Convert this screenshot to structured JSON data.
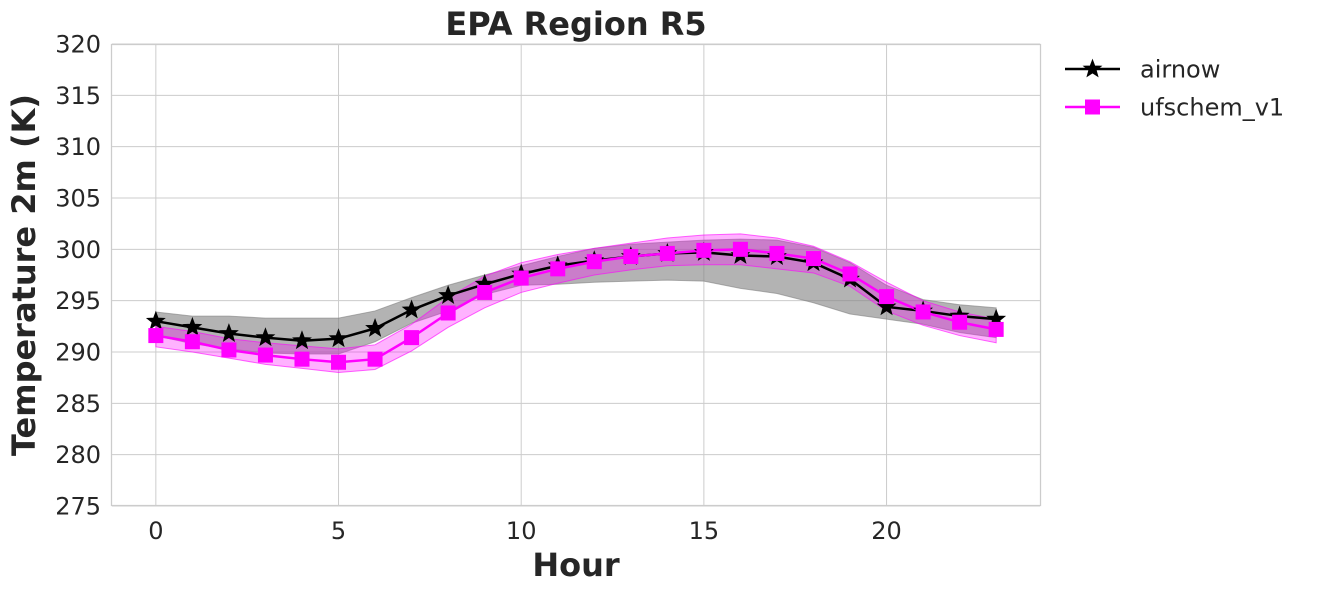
{
  "chart_data": {
    "type": "line",
    "title": "EPA Region R5",
    "xlabel": "Hour",
    "ylabel": "Temperature 2m (K)",
    "xlim": [
      -1.2,
      24.2
    ],
    "ylim": [
      275,
      320
    ],
    "xticks": [
      0,
      5,
      10,
      15,
      20
    ],
    "yticks": [
      275,
      280,
      285,
      290,
      295,
      300,
      305,
      310,
      315,
      320
    ],
    "grid": true,
    "legend_position": "outside-top-right",
    "x": [
      0,
      1,
      2,
      3,
      4,
      5,
      6,
      7,
      8,
      9,
      10,
      11,
      12,
      13,
      14,
      15,
      16,
      17,
      18,
      19,
      20,
      21,
      22,
      23
    ],
    "series": [
      {
        "name": "airnow",
        "color": "#000000",
        "marker": "star",
        "band_color": "#808080",
        "values": [
          293.0,
          292.4,
          291.8,
          291.4,
          291.1,
          291.3,
          292.3,
          294.1,
          295.5,
          296.6,
          297.6,
          298.4,
          298.9,
          299.3,
          299.6,
          299.7,
          299.4,
          299.3,
          298.7,
          297.1,
          294.4,
          294.0,
          293.5,
          293.2
        ],
        "upper": [
          293.9,
          293.5,
          293.5,
          293.3,
          293.3,
          293.3,
          294.0,
          295.3,
          296.5,
          297.5,
          298.4,
          299.3,
          300.1,
          300.5,
          300.7,
          300.9,
          301.0,
          300.9,
          300.2,
          298.7,
          296.5,
          295.1,
          294.6,
          294.3
        ],
        "lower": [
          291.6,
          290.8,
          290.3,
          289.9,
          289.8,
          289.8,
          291.0,
          292.8,
          294.0,
          295.6,
          296.5,
          296.6,
          296.8,
          296.9,
          297.0,
          296.9,
          296.2,
          295.7,
          294.8,
          293.7,
          293.2,
          292.7,
          291.9,
          291.4
        ]
      },
      {
        "name": "ufschem_v1",
        "color": "#ff00ff",
        "marker": "square",
        "band_color": "#ff00ff",
        "values": [
          291.6,
          291.0,
          290.2,
          289.7,
          289.3,
          289.0,
          289.3,
          291.4,
          293.8,
          295.8,
          297.2,
          298.1,
          298.8,
          299.3,
          299.6,
          299.9,
          300.0,
          299.6,
          299.1,
          297.6,
          295.4,
          293.9,
          292.9,
          292.2
        ],
        "upper": [
          292.5,
          292.0,
          291.3,
          290.9,
          290.6,
          290.3,
          290.7,
          292.7,
          295.3,
          297.4,
          298.7,
          299.5,
          300.1,
          300.6,
          301.1,
          301.4,
          301.5,
          301.1,
          300.3,
          298.8,
          296.8,
          295.0,
          293.9,
          293.2
        ],
        "lower": [
          290.5,
          290.0,
          289.4,
          288.8,
          288.4,
          288.0,
          288.3,
          290.1,
          292.4,
          294.3,
          295.8,
          296.7,
          297.5,
          298.0,
          298.4,
          298.5,
          298.5,
          298.1,
          297.7,
          296.4,
          294.0,
          292.6,
          291.6,
          290.9
        ]
      }
    ]
  }
}
